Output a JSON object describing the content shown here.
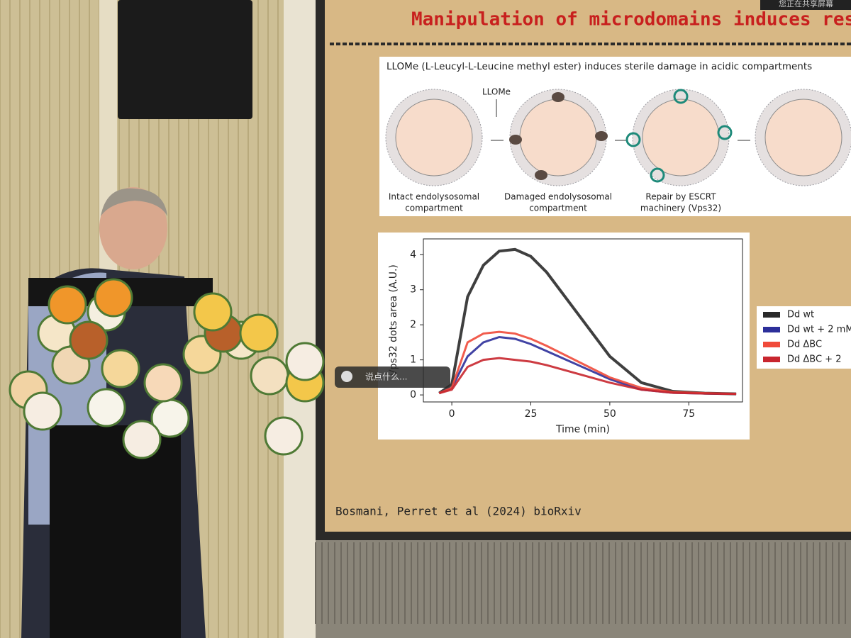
{
  "slide": {
    "title": "Manipulation of microdomains induces resis",
    "diagram": {
      "heading": "LLOMe (L-Leucyl-L-Leucine methyl ester)  induces sterile damage in acidic compartments",
      "agent": "LLOMe",
      "stages": [
        [
          "Intact endolysosomal",
          "compartment"
        ],
        [
          "Damaged endolysosomal",
          "compartment"
        ],
        [
          "Repair by ESCRT",
          "machinery (Vps32)"
        ]
      ]
    },
    "citation": "Bosmani, Perret et al (2024) bioRxiv"
  },
  "overlay": {
    "comment_prompt": "说点什么...",
    "sharing_notice": "您正在共享屏幕"
  },
  "chart_data": {
    "type": "line",
    "x_label": "Time (min)",
    "y_label": "Vps32 dots area (A.U.)",
    "x": [
      -4,
      0,
      5,
      10,
      15,
      20,
      25,
      30,
      40,
      50,
      60,
      70,
      80,
      90
    ],
    "series": [
      {
        "name": "Dd wt",
        "color": "#2a2a2a",
        "values": [
          0.05,
          0.3,
          2.8,
          3.7,
          4.1,
          4.15,
          3.95,
          3.5,
          2.3,
          1.1,
          0.35,
          0.1,
          0.05,
          0.03
        ]
      },
      {
        "name": "Dd wt + 2 mM",
        "color": "#2c2f9a",
        "values": [
          0.05,
          0.2,
          1.1,
          1.5,
          1.65,
          1.6,
          1.45,
          1.25,
          0.85,
          0.45,
          0.15,
          0.06,
          0.04,
          0.03
        ]
      },
      {
        "name": "Dd ΔBC",
        "color": "#f04a3a",
        "values": [
          0.05,
          0.2,
          1.5,
          1.75,
          1.8,
          1.75,
          1.6,
          1.4,
          0.95,
          0.5,
          0.2,
          0.08,
          0.05,
          0.03
        ]
      },
      {
        "name": "Dd ΔBC + 2",
        "color": "#c8262e",
        "values": [
          0.05,
          0.15,
          0.8,
          1.0,
          1.05,
          1.0,
          0.95,
          0.85,
          0.6,
          0.35,
          0.15,
          0.06,
          0.04,
          0.03
        ]
      }
    ],
    "xlim": [
      -9,
      92
    ],
    "ylim": [
      -0.2,
      4.45
    ],
    "xticks": [
      0,
      25,
      50,
      75
    ],
    "yticks": [
      0,
      1,
      2,
      3,
      4
    ],
    "legend": "right"
  }
}
